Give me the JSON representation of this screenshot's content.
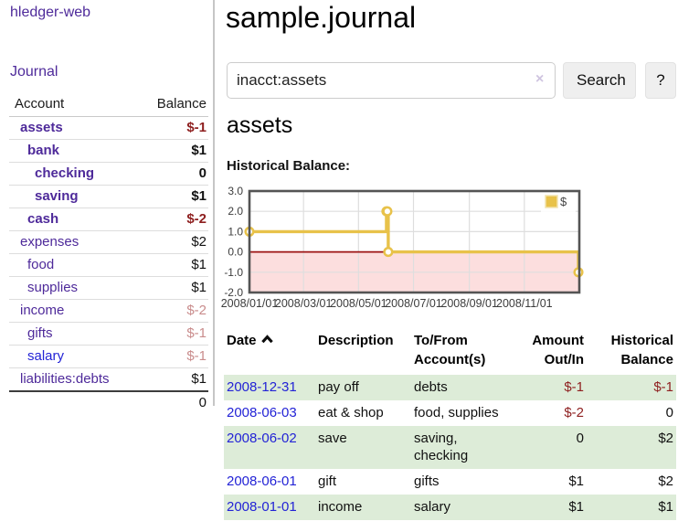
{
  "colors": {
    "purple": "#4e2a9a",
    "blue": "#2323d6",
    "neg": "#8e1f1f",
    "neg_muted": "#c98c8c",
    "green_row": "#ddecd8"
  },
  "app": {
    "brand": "hledger-web"
  },
  "sidebar": {
    "journal_link": "Journal",
    "headers": {
      "account": "Account",
      "balance": "Balance"
    },
    "accounts": [
      {
        "name": "assets",
        "balance": "$-1",
        "depth": 1,
        "bold": true,
        "link_color": "purple",
        "balance_class": "bal-neg-strong"
      },
      {
        "name": "bank",
        "balance": "$1",
        "depth": 2,
        "bold": true,
        "link_color": "purple",
        "balance_class": ""
      },
      {
        "name": "checking",
        "balance": "0",
        "depth": 3,
        "bold": true,
        "link_color": "purple",
        "balance_class": ""
      },
      {
        "name": "saving",
        "balance": "$1",
        "depth": 3,
        "bold": true,
        "link_color": "purple",
        "balance_class": ""
      },
      {
        "name": "cash",
        "balance": "$-2",
        "depth": 2,
        "bold": true,
        "link_color": "purple",
        "balance_class": "bal-neg-strong"
      },
      {
        "name": "expenses",
        "balance": "$2",
        "depth": 1,
        "bold": false,
        "link_color": "purple",
        "balance_class": ""
      },
      {
        "name": "food",
        "balance": "$1",
        "depth": 2,
        "bold": false,
        "link_color": "purple",
        "balance_class": ""
      },
      {
        "name": "supplies",
        "balance": "$1",
        "depth": 2,
        "bold": false,
        "link_color": "purple",
        "balance_class": ""
      },
      {
        "name": "income",
        "balance": "$-2",
        "depth": 1,
        "bold": false,
        "link_color": "purple",
        "balance_class": "bal-neg-muted"
      },
      {
        "name": "gifts",
        "balance": "$-1",
        "depth": 2,
        "bold": false,
        "link_color": "purple",
        "balance_class": "bal-neg-muted"
      },
      {
        "name": "salary",
        "balance": "$-1",
        "depth": 2,
        "bold": false,
        "link_color": "blue",
        "balance_class": "bal-neg-muted"
      },
      {
        "name": "liabilities:debts",
        "balance": "$1",
        "depth": 1,
        "bold": false,
        "link_color": "purple",
        "balance_class": ""
      }
    ],
    "total": "0"
  },
  "main": {
    "title": "sample.journal",
    "search": {
      "value": "inacct:assets",
      "clear": "×",
      "button": "Search",
      "help": "?"
    },
    "heading": "assets",
    "chart_label": "Historical Balance:"
  },
  "chart_data": {
    "type": "line",
    "title": "Historical Balance",
    "style": "steps",
    "series": [
      {
        "name": "$",
        "color": "#e8c24a",
        "points": [
          [
            "2008-01-01",
            1
          ],
          [
            "2008-06-01",
            2
          ],
          [
            "2008-06-02",
            2
          ],
          [
            "2008-06-03",
            0
          ],
          [
            "2008-12-31",
            -1
          ]
        ]
      }
    ],
    "x_range": [
      "2008-01-01",
      "2009-01-01"
    ],
    "x_tick_dates": [
      "2008-01-01",
      "2008-03-01",
      "2008-05-01",
      "2008-07-01",
      "2008-09-01",
      "2008-11-01"
    ],
    "x_ticks": [
      "2008/01/01",
      "2008/03/01",
      "2008/05/01",
      "2008/07/01",
      "2008/09/01",
      "2008/11/01"
    ],
    "y_ticks": [
      "3.0",
      "2.0",
      "1.0",
      "0.0",
      "-1.0",
      "-2.0"
    ],
    "ylim": [
      -2,
      3
    ],
    "grid": true,
    "negative_region_color": "#fcdede",
    "zero_line_color": "#9d1212",
    "legend": {
      "label": "$",
      "position": "top-right"
    }
  },
  "transactions": {
    "headers": {
      "date": "Date",
      "description": "Description",
      "accounts": "To/From Account(s)",
      "amount": "Amount Out/In",
      "balance": "Historical Balance"
    },
    "rows": [
      {
        "date": "2008-12-31",
        "description": "pay off",
        "accounts": "debts",
        "amount": "$-1",
        "balance": "$-1",
        "shaded": true
      },
      {
        "date": "2008-06-03",
        "description": "eat & shop",
        "accounts": "food, supplies",
        "amount": "$-2",
        "balance": "0",
        "shaded": false
      },
      {
        "date": "2008-06-02",
        "description": "save",
        "accounts": "saving, checking",
        "amount": "0",
        "balance": "$2",
        "shaded": true
      },
      {
        "date": "2008-06-01",
        "description": "gift",
        "accounts": "gifts",
        "amount": "$1",
        "balance": "$2",
        "shaded": false
      },
      {
        "date": "2008-01-01",
        "description": "income",
        "accounts": "salary",
        "amount": "$1",
        "balance": "$1",
        "shaded": true
      }
    ]
  }
}
